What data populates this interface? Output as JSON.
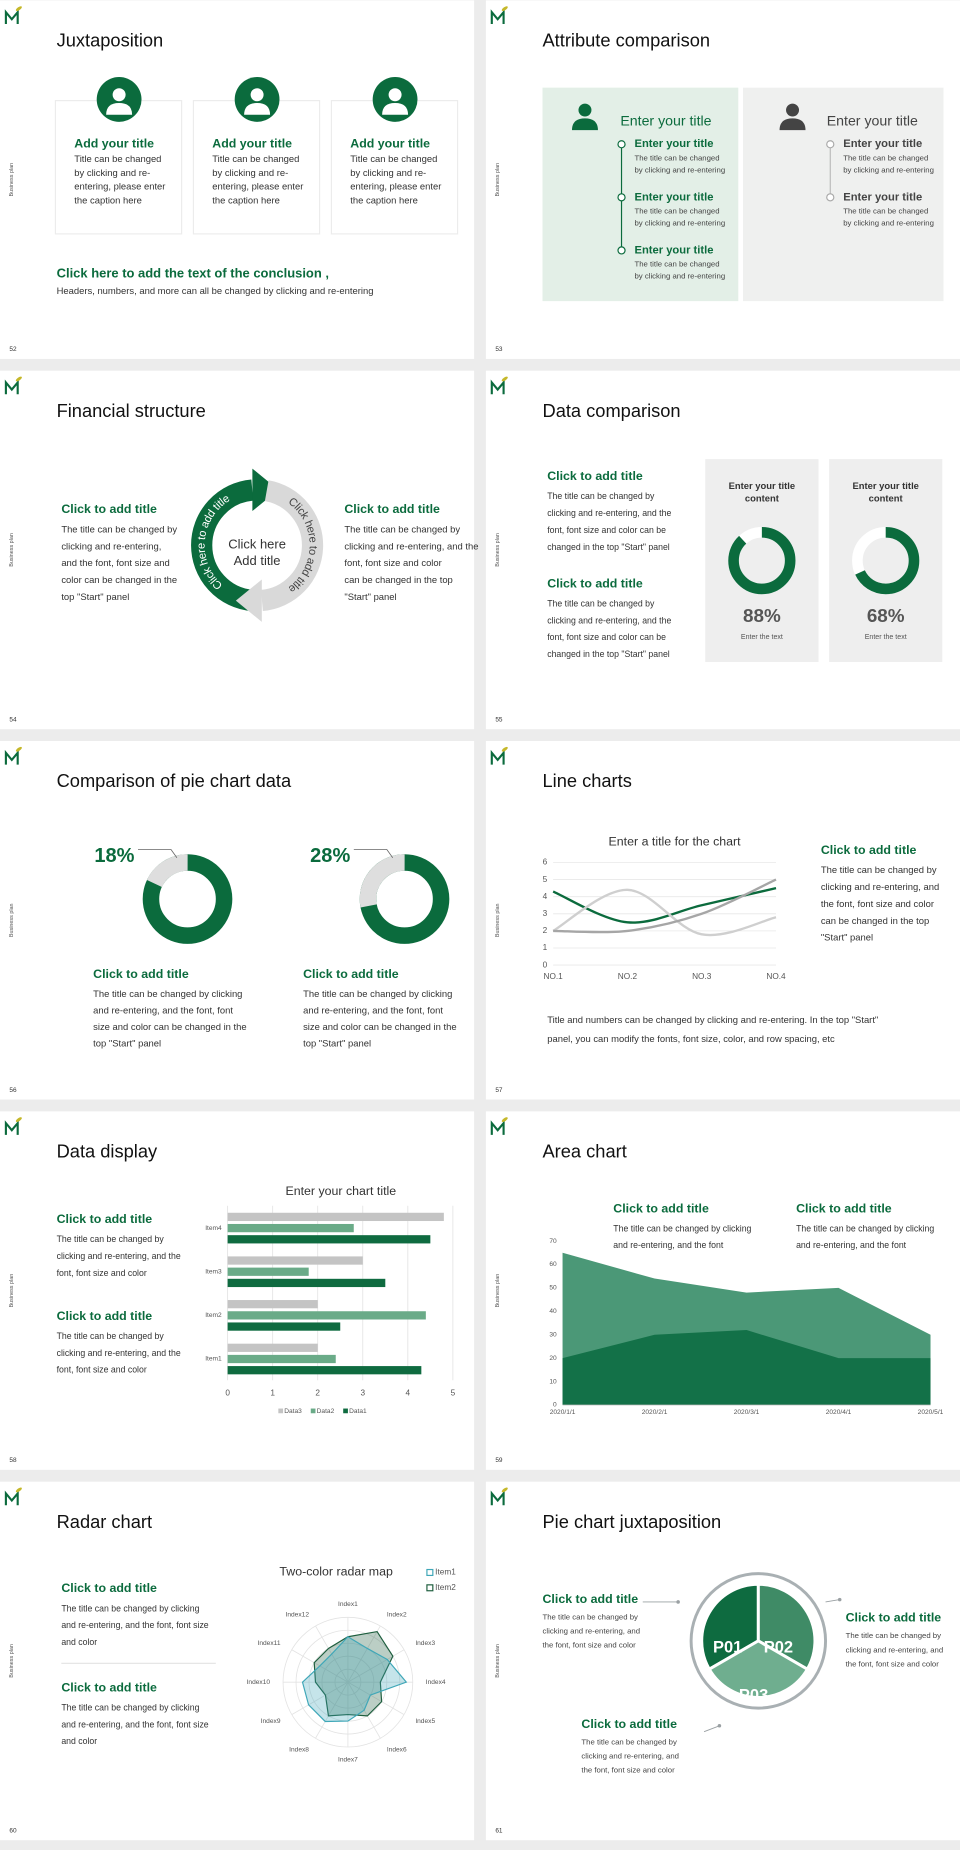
{
  "slides": [
    {
      "number": "52",
      "side_label": "Business plan",
      "title": "Juxtaposition",
      "cards": [
        {
          "title": "Add your title",
          "text": [
            "Title can be changed",
            "by clicking and re-",
            "entering, please enter",
            "the caption here"
          ]
        },
        {
          "title": "Add your title",
          "text": [
            "Title can be changed",
            "by clicking and re-",
            "entering, please enter",
            "the caption here"
          ]
        },
        {
          "title": "Add your title",
          "text": [
            "Title can be changed",
            "by clicking and re-",
            "entering, please enter",
            "the caption here"
          ]
        }
      ],
      "conclusion_title": "Click here to add the text of the conclusion ,",
      "conclusion_text": "Headers, numbers, and more can all be changed by clicking and re-entering"
    },
    {
      "number": "53",
      "side_label": "Business plan",
      "title": "Attribute comparison",
      "panels": [
        {
          "title": "Enter your title",
          "items": [
            {
              "title": "Enter your title",
              "text": [
                "The title can be changed",
                "by clicking and re-entering"
              ]
            },
            {
              "title": "Enter your title",
              "text": [
                "The title can be changed",
                "by clicking and re-entering"
              ]
            },
            {
              "title": "Enter your title",
              "text": [
                "The title can be changed",
                "by clicking and re-entering"
              ]
            }
          ]
        },
        {
          "title": "Enter your title",
          "items": [
            {
              "title": "Enter your title",
              "text": [
                "The title can be changed",
                "by clicking and re-entering"
              ]
            },
            {
              "title": "Enter your title",
              "text": [
                "The title can be changed",
                "by clicking and re-entering"
              ]
            }
          ]
        }
      ]
    },
    {
      "number": "54",
      "side_label": "Business plan",
      "title": "Financial structure",
      "blocks": [
        {
          "title": "Click to add title",
          "text": [
            "The title can be changed by",
            "clicking and re-entering,",
            "and the font, font size and",
            "color can be changed in the",
            "top \"Start\" panel"
          ]
        },
        {
          "title": "Click to add title",
          "text": [
            "The title can be changed by",
            "clicking and re-entering, and the",
            "font, font size and color",
            "can be changed in the top",
            "\"Start\" panel"
          ]
        }
      ],
      "arc_labels": [
        "Click here to add title",
        "Click here to add title"
      ],
      "center_text": [
        "Click here",
        "Add title"
      ]
    },
    {
      "number": "55",
      "side_label": "Business plan",
      "title": "Data comparison",
      "blocks": [
        {
          "title": "Click to add title",
          "text": [
            "The title can be changed by",
            "clicking and re-entering, and the",
            "font, font size and color can be",
            "changed in the top \"Start\" panel"
          ]
        },
        {
          "title": "Click to add title",
          "text": [
            "The title can be changed by",
            "clicking and re-entering, and the",
            "font, font size and color can be",
            "changed in the top \"Start\" panel"
          ]
        }
      ],
      "chart": {
        "type": "donut",
        "color": "#0b6b3d",
        "track_color": "#ffffff",
        "direction": "clockwise",
        "panels": [
          {
            "title": [
              "Enter your title",
              "content"
            ],
            "value": 88,
            "value_label": "88%",
            "caption": "Enter the text"
          },
          {
            "title": [
              "Enter your title",
              "content"
            ],
            "value": 68,
            "value_label": "68%",
            "caption": "Enter the text"
          }
        ]
      }
    },
    {
      "number": "56",
      "side_label": "Business plan",
      "title": "Comparison of pie chart data",
      "chart": {
        "type": "donut",
        "color": "#dedede",
        "track_color": "#0b6b3d",
        "direction": "counterclockwise",
        "panels": [
          {
            "value": 18,
            "value_label": "18%"
          },
          {
            "value": 28,
            "value_label": "28%"
          }
        ]
      },
      "blocks": [
        {
          "title": "Click to add title",
          "text": [
            "The title can be changed by clicking",
            "and re-entering, and the font, font",
            "size and color can be changed in the",
            "top \"Start\" panel"
          ]
        },
        {
          "title": "Click to add title",
          "text": [
            "The title can be changed by clicking",
            "and re-entering, and the font, font",
            "size and color can be changed in the",
            "top \"Start\" panel"
          ]
        }
      ]
    },
    {
      "number": "57",
      "side_label": "Business plan",
      "title": "Line charts",
      "chart": {
        "type": "line",
        "title": "Enter a title for the chart",
        "categories": [
          "NO.1",
          "NO.2",
          "NO.3",
          "NO.4"
        ],
        "series": [
          {
            "color": "#0b6b3d",
            "values": [
              4.3,
              2.5,
              3.5,
              4.5
            ]
          },
          {
            "color": "#cfcfcf",
            "values": [
              2,
              4.4,
              1.8,
              2.8
            ]
          },
          {
            "color": "#a6a6a6",
            "values": [
              2,
              2,
              3,
              5
            ]
          }
        ],
        "ylim": [
          0,
          6
        ],
        "yticks": [
          0,
          1,
          2,
          3,
          4,
          5,
          6
        ],
        "grid": true
      },
      "blocks": [
        {
          "title": "Click to add title",
          "text": [
            "The title can be changed by",
            "clicking and re-entering, and",
            "the font, font size and color",
            "can be changed in the top",
            "\"Start\" panel"
          ]
        }
      ],
      "note": [
        "Title and numbers can be changed by clicking and re-entering. In the top \"Start\"",
        "panel, you can modify the fonts, font size, color, and row spacing, etc"
      ]
    },
    {
      "number": "58",
      "side_label": "Business plan",
      "title": "Data display",
      "blocks": [
        {
          "title": "Click to add title",
          "text": [
            "The title can be changed by",
            "clicking and re-entering, and the",
            "font, font size and color"
          ]
        },
        {
          "title": "Click to add title",
          "text": [
            "The title can be changed by",
            "clicking and re-entering, and the",
            "font, font size and color"
          ]
        }
      ],
      "chart": {
        "type": "bar",
        "orientation": "horizontal",
        "title": "Enter your chart title",
        "categories": [
          "Item1",
          "Item2",
          "Item3",
          "Item4"
        ],
        "series": [
          {
            "name": "Data1",
            "color": "#0f6b40",
            "values": [
              4.3,
              2.5,
              3.5,
              4.5
            ]
          },
          {
            "name": "Data2",
            "color": "#6aab88",
            "values": [
              2.4,
              4.4,
              1.8,
              2.8
            ]
          },
          {
            "name": "Data3",
            "color": "#c4c4c4",
            "values": [
              2,
              2,
              3,
              4.8
            ]
          }
        ],
        "xlim": [
          0,
          5
        ],
        "xticks": [
          0,
          1,
          2,
          3,
          4,
          5
        ],
        "grid": true
      }
    },
    {
      "number": "59",
      "side_label": "Business plan",
      "title": "Area chart",
      "blocks": [
        {
          "title": "Click to add title",
          "text": [
            "The title can be changed by clicking",
            "and re-entering, and the font"
          ]
        },
        {
          "title": "Click to add title",
          "text": [
            "The title can be changed by clicking",
            "and re-entering, and the font"
          ]
        }
      ],
      "chart": {
        "type": "area",
        "x": [
          "2020/1/1",
          "2020/2/1",
          "2020/3/1",
          "2020/4/1",
          "2020/5/1"
        ],
        "series": [
          {
            "color": "#4b9877",
            "values": [
              65,
              54,
              48,
              50,
              30
            ]
          },
          {
            "color": "#137148",
            "values": [
              20,
              30,
              32,
              20,
              20
            ]
          }
        ],
        "ylim": [
          0,
          70
        ],
        "yticks": [
          0,
          10,
          20,
          30,
          40,
          50,
          60,
          70
        ]
      }
    },
    {
      "number": "60",
      "side_label": "Business plan",
      "title": "Radar chart",
      "blocks": [
        {
          "title": "Click to add title",
          "text": [
            "The title can be changed by clicking",
            "and re-entering, and the font, font size",
            "and color"
          ]
        },
        {
          "title": "Click to add title",
          "text": [
            "The title can be changed by clicking",
            "and re-entering, and the font, font size",
            "and color"
          ]
        }
      ],
      "chart": {
        "type": "radar",
        "title": "Two-color radar map",
        "categories": [
          "Index1",
          "Index2",
          "Index3",
          "Index4",
          "Index5",
          "Index6",
          "Index7",
          "Index8",
          "Index9",
          "Index10",
          "Index11",
          "Index12"
        ],
        "series": [
          {
            "name": "Item1",
            "color": "#3fa7b8",
            "values": [
              3.5,
              3,
              3.5,
              4.5,
              2,
              2.5,
              3,
              3.5,
              3.5,
              3.5,
              2.5,
              2.5
            ]
          },
          {
            "name": "Item2",
            "color": "#1e5e3e",
            "values": [
              3.5,
              4.5,
              4,
              2.5,
              3,
              3,
              2.5,
              3,
              2,
              2.5,
              3,
              3
            ]
          }
        ],
        "rlim": [
          0,
          5
        ],
        "rticks": [
          1,
          2,
          3,
          4,
          5
        ]
      }
    },
    {
      "number": "61",
      "side_label": "Business plan",
      "title": "Pie chart juxtaposition",
      "segments": [
        "P01",
        "P02",
        "P03"
      ],
      "blocks": [
        {
          "title": "Click to add title",
          "text": [
            "The title can be changed by",
            "clicking and re-entering, and",
            "the font, font size and color"
          ]
        },
        {
          "title": "Click to add title",
          "text": [
            "The title can be changed by",
            "clicking and re-entering, and",
            "the font, font size and color"
          ]
        },
        {
          "title": "Click to add title",
          "text": [
            "The title can be changed by",
            "clicking and re-entering, and",
            "the font, font size and color"
          ]
        }
      ]
    }
  ]
}
